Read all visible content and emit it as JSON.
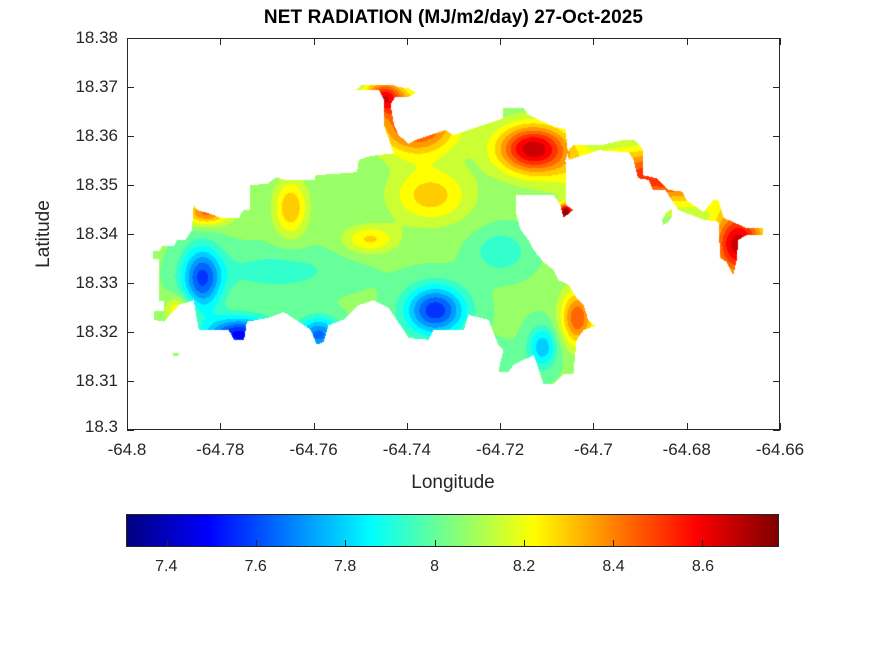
{
  "chart_data": {
    "type": "heatmap",
    "subtype": "filled-contour-map",
    "title": "NET RADIATION (MJ/m2/day) 27-Oct-2025",
    "xlabel": "Longitude",
    "ylabel": "Latitude",
    "xlim": [
      -64.8,
      -64.66
    ],
    "ylim": [
      18.3,
      18.38
    ],
    "xticks": [
      -64.8,
      -64.78,
      -64.76,
      -64.74,
      -64.72,
      -64.7,
      -64.68,
      -64.66
    ],
    "xtick_labels": [
      "-64.8",
      "-64.78",
      "-64.76",
      "-64.74",
      "-64.72",
      "-64.7",
      "-64.68",
      "-64.66"
    ],
    "yticks": [
      18.3,
      18.31,
      18.32,
      18.33,
      18.34,
      18.35,
      18.36,
      18.37,
      18.38
    ],
    "ytick_labels": [
      "18.3",
      "18.31",
      "18.32",
      "18.33",
      "18.34",
      "18.35",
      "18.36",
      "18.37",
      "18.38"
    ],
    "grid": false,
    "colormap": "jet",
    "clim": [
      7.31,
      8.77
    ],
    "contour_levels": 20,
    "colorbar": {
      "location": "bottom",
      "ticks": [
        7.4,
        7.6,
        7.8,
        8.0,
        8.2,
        8.4,
        8.6
      ],
      "tick_labels": [
        "7.4",
        "7.6",
        "7.8",
        "8",
        "8.2",
        "8.4",
        "8.6"
      ]
    },
    "field": {
      "base_value": 8.05,
      "features": [
        {
          "name": "northeast-high",
          "lon": -64.713,
          "lat": 18.3575,
          "amp": 0.62,
          "sx": 0.0055,
          "sy": 0.0035
        },
        {
          "name": "north-central-high",
          "lon": -64.738,
          "lat": 18.362,
          "amp": 0.48,
          "sx": 0.006,
          "sy": 0.004
        },
        {
          "name": "northwest-lobe-high",
          "lon": -64.745,
          "lat": 18.368,
          "amp": 0.5,
          "sx": 0.003,
          "sy": 0.0025
        },
        {
          "name": "east-peninsula-high",
          "lon": -64.685,
          "lat": 18.352,
          "amp": 0.5,
          "sx": 0.012,
          "sy": 0.004
        },
        {
          "name": "far-east-high",
          "lon": -64.669,
          "lat": 18.338,
          "amp": 0.62,
          "sx": 0.004,
          "sy": 0.005
        },
        {
          "name": "small-point-max",
          "lon": -64.706,
          "lat": 18.3445,
          "amp": 0.75,
          "sx": 0.0012,
          "sy": 0.0012
        },
        {
          "name": "central-orange",
          "lon": -64.735,
          "lat": 18.348,
          "amp": 0.25,
          "sx": 0.006,
          "sy": 0.004
        },
        {
          "name": "east-coast-high",
          "lon": -64.7035,
          "lat": 18.323,
          "amp": 0.42,
          "sx": 0.0025,
          "sy": 0.004
        },
        {
          "name": "nw-corner-high",
          "lon": -64.783,
          "lat": 18.3445,
          "amp": 0.38,
          "sx": 0.0035,
          "sy": 0.0018
        },
        {
          "name": "north-ridge-high",
          "lon": -64.765,
          "lat": 18.3455,
          "amp": 0.28,
          "sx": 0.0025,
          "sy": 0.004
        },
        {
          "name": "mid-north-high",
          "lon": -64.748,
          "lat": 18.339,
          "amp": 0.22,
          "sx": 0.004,
          "sy": 0.002
        },
        {
          "name": "west-tip-high",
          "lon": -64.789,
          "lat": 18.3245,
          "amp": 0.22,
          "sx": 0.002,
          "sy": 0.002
        },
        {
          "name": "west-low",
          "lon": -64.784,
          "lat": 18.331,
          "amp": -0.45,
          "sx": 0.003,
          "sy": 0.0045
        },
        {
          "name": "southwest-low",
          "lon": -64.776,
          "lat": 18.3195,
          "amp": -0.55,
          "sx": 0.005,
          "sy": 0.0025
        },
        {
          "name": "south-notch-low",
          "lon": -64.759,
          "lat": 18.3195,
          "amp": -0.4,
          "sx": 0.003,
          "sy": 0.0025
        },
        {
          "name": "south-central-low",
          "lon": -64.734,
          "lat": 18.3245,
          "amp": -0.5,
          "sx": 0.0045,
          "sy": 0.0035
        },
        {
          "name": "southeast-low",
          "lon": -64.711,
          "lat": 18.317,
          "amp": -0.28,
          "sx": 0.0022,
          "sy": 0.003
        },
        {
          "name": "mid-cyan",
          "lon": -64.72,
          "lat": 18.3365,
          "amp": -0.15,
          "sx": 0.004,
          "sy": 0.003
        },
        {
          "name": "west-band-cyan",
          "lon": -64.768,
          "lat": 18.3325,
          "amp": -0.12,
          "sx": 0.01,
          "sy": 0.003
        },
        {
          "name": "south-east-green",
          "lon": -64.722,
          "lat": 18.313,
          "amp": -0.08,
          "sx": 0.004,
          "sy": 0.003
        }
      ]
    },
    "land_polygons": [
      {
        "name": "main-island",
        "points": [
          [
            -64.7945,
            18.3365
          ],
          [
            -64.7945,
            18.3349
          ],
          [
            -64.7932,
            18.3349
          ],
          [
            -64.7932,
            18.3263
          ],
          [
            -64.7921,
            18.3263
          ],
          [
            -64.7921,
            18.3243
          ],
          [
            -64.7943,
            18.3243
          ],
          [
            -64.7943,
            18.3225
          ],
          [
            -64.7921,
            18.3221
          ],
          [
            -64.7889,
            18.3255
          ],
          [
            -64.7857,
            18.3265
          ],
          [
            -64.7846,
            18.3204
          ],
          [
            -64.7782,
            18.3204
          ],
          [
            -64.7771,
            18.3184
          ],
          [
            -64.7749,
            18.3184
          ],
          [
            -64.7743,
            18.3221
          ],
          [
            -64.7696,
            18.3229
          ],
          [
            -64.7664,
            18.3241
          ],
          [
            -64.7632,
            18.3221
          ],
          [
            -64.7606,
            18.3204
          ],
          [
            -64.7593,
            18.3174
          ],
          [
            -64.7578,
            18.318
          ],
          [
            -64.7568,
            18.3214
          ],
          [
            -64.7536,
            18.3225
          ],
          [
            -64.7503,
            18.3255
          ],
          [
            -64.7471,
            18.3265
          ],
          [
            -64.7439,
            18.3249
          ],
          [
            -64.7407,
            18.3204
          ],
          [
            -64.7396,
            18.3188
          ],
          [
            -64.7353,
            18.3184
          ],
          [
            -64.7343,
            18.3204
          ],
          [
            -64.7278,
            18.3204
          ],
          [
            -64.7268,
            18.3235
          ],
          [
            -64.7225,
            18.3225
          ],
          [
            -64.7204,
            18.3174
          ],
          [
            -64.7193,
            18.3163
          ],
          [
            -64.7204,
            18.3119
          ],
          [
            -64.7182,
            18.3119
          ],
          [
            -64.7171,
            18.3133
          ],
          [
            -64.715,
            18.3143
          ],
          [
            -64.7128,
            18.3153
          ],
          [
            -64.7107,
            18.3094
          ],
          [
            -64.7086,
            18.3094
          ],
          [
            -64.7064,
            18.3114
          ],
          [
            -64.7043,
            18.3114
          ],
          [
            -64.7036,
            18.3184
          ],
          [
            -64.7021,
            18.3204
          ],
          [
            -64.6996,
            18.3212
          ],
          [
            -64.7011,
            18.3224
          ],
          [
            -64.7021,
            18.3255
          ],
          [
            -64.7036,
            18.3269
          ],
          [
            -64.7053,
            18.3296
          ],
          [
            -64.7075,
            18.3306
          ],
          [
            -64.7086,
            18.3327
          ],
          [
            -64.7107,
            18.3343
          ],
          [
            -64.7128,
            18.3367
          ],
          [
            -64.7139,
            18.3388
          ],
          [
            -64.7156,
            18.3408
          ],
          [
            -64.7165,
            18.3439
          ],
          [
            -64.7165,
            18.348
          ],
          [
            -64.7086,
            18.348
          ],
          [
            -64.7071,
            18.3459
          ],
          [
            -64.7064,
            18.3433
          ],
          [
            -64.7043,
            18.3449
          ],
          [
            -64.7058,
            18.3459
          ],
          [
            -64.7058,
            18.348
          ],
          [
            -64.706,
            18.3551
          ],
          [
            -64.7053,
            18.3571
          ],
          [
            -64.7043,
            18.3582
          ],
          [
            -64.6979,
            18.3582
          ],
          [
            -64.6936,
            18.3592
          ],
          [
            -64.6911,
            18.3592
          ],
          [
            -64.6893,
            18.3571
          ],
          [
            -64.6893,
            18.352
          ],
          [
            -64.6865,
            18.3514
          ],
          [
            -64.6839,
            18.349
          ],
          [
            -64.6809,
            18.3486
          ],
          [
            -64.68,
            18.3469
          ],
          [
            -64.6764,
            18.3445
          ],
          [
            -64.6743,
            18.3469
          ],
          [
            -64.6732,
            18.3469
          ],
          [
            -64.6721,
            18.3433
          ],
          [
            -64.6672,
            18.3412
          ],
          [
            -64.6636,
            18.3412
          ],
          [
            -64.6636,
            18.3398
          ],
          [
            -64.6672,
            18.3398
          ],
          [
            -64.6689,
            18.3388
          ],
          [
            -64.6693,
            18.3347
          ],
          [
            -64.67,
            18.3316
          ],
          [
            -64.6715,
            18.3343
          ],
          [
            -64.6728,
            18.3351
          ],
          [
            -64.6732,
            18.3425
          ],
          [
            -64.6764,
            18.3429
          ],
          [
            -64.6818,
            18.3449
          ],
          [
            -64.6846,
            18.349
          ],
          [
            -64.6872,
            18.349
          ],
          [
            -64.6882,
            18.351
          ],
          [
            -64.6904,
            18.3514
          ],
          [
            -64.6914,
            18.3551
          ],
          [
            -64.6925,
            18.3567
          ],
          [
            -64.6989,
            18.3571
          ],
          [
            -64.7053,
            18.3551
          ],
          [
            -64.706,
            18.3614
          ],
          [
            -64.7086,
            18.362
          ],
          [
            -64.7118,
            18.3633
          ],
          [
            -64.7139,
            18.3643
          ],
          [
            -64.715,
            18.3657
          ],
          [
            -64.7193,
            18.3657
          ],
          [
            -64.7195,
            18.3635
          ],
          [
            -64.7268,
            18.3612
          ],
          [
            -64.73,
            18.3602
          ],
          [
            -64.7318,
            18.3612
          ],
          [
            -64.7343,
            18.3604
          ],
          [
            -64.7375,
            18.3594
          ],
          [
            -64.7396,
            18.3584
          ],
          [
            -64.7418,
            18.3602
          ],
          [
            -64.7428,
            18.3624
          ],
          [
            -64.7435,
            18.3665
          ],
          [
            -64.7424,
            18.368
          ],
          [
            -64.7396,
            18.368
          ],
          [
            -64.738,
            18.3688
          ],
          [
            -64.7396,
            18.3697
          ],
          [
            -64.7418,
            18.37
          ],
          [
            -64.743,
            18.3704
          ],
          [
            -64.7496,
            18.3704
          ],
          [
            -64.751,
            18.3694
          ],
          [
            -64.746,
            18.3694
          ],
          [
            -64.745,
            18.3676
          ],
          [
            -64.745,
            18.3624
          ],
          [
            -64.7428,
            18.3565
          ],
          [
            -64.7478,
            18.3559
          ],
          [
            -64.7503,
            18.3551
          ],
          [
            -64.7507,
            18.3526
          ],
          [
            -64.7596,
            18.352
          ],
          [
            -64.7596,
            18.351
          ],
          [
            -64.766,
            18.351
          ],
          [
            -64.768,
            18.3516
          ],
          [
            -64.77,
            18.3502
          ],
          [
            -64.7736,
            18.35
          ],
          [
            -64.7736,
            18.3449
          ],
          [
            -64.775,
            18.3449
          ],
          [
            -64.776,
            18.3433
          ],
          [
            -64.78,
            18.3433
          ],
          [
            -64.782,
            18.3441
          ],
          [
            -64.785,
            18.3449
          ],
          [
            -64.7857,
            18.3459
          ],
          [
            -64.7861,
            18.3408
          ],
          [
            -64.7875,
            18.3388
          ],
          [
            -64.7893,
            18.3388
          ],
          [
            -64.79,
            18.3375
          ],
          [
            -64.7925,
            18.3375
          ],
          [
            -64.793,
            18.3365
          ]
        ]
      },
      {
        "name": "islet-southwest",
        "points": [
          [
            -64.7902,
            18.3157
          ],
          [
            -64.7889,
            18.3157
          ],
          [
            -64.7889,
            18.3152
          ],
          [
            -64.7902,
            18.3152
          ]
        ]
      },
      {
        "name": "islet-east-inlet",
        "points": [
          [
            -64.6843,
            18.3445
          ],
          [
            -64.6832,
            18.3451
          ],
          [
            -64.6832,
            18.3435
          ],
          [
            -64.6839,
            18.3425
          ],
          [
            -64.685,
            18.3418
          ],
          [
            -64.6853,
            18.3428
          ]
        ]
      }
    ]
  }
}
